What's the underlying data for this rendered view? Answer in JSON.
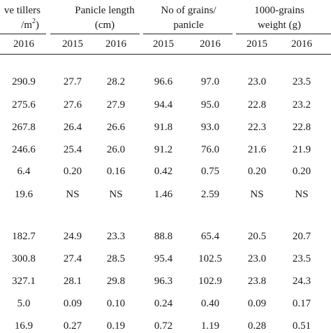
{
  "headers": {
    "tillers_line1": "ve tillers",
    "tillers_line2_pre": "/m",
    "tillers_line2_sup": "2",
    "tillers_line2_post": ")",
    "panicle_line1": "Panicle length",
    "panicle_line2": "(cm)",
    "grains_line1": "No of grains/",
    "grains_line2": "panicle",
    "weight_line1": "1000-grains",
    "weight_line2": "weight (g)"
  },
  "years": [
    "2016",
    "2015",
    "2016",
    "2015",
    "2016",
    "2015",
    "2016"
  ],
  "rows": [
    [
      "290.9",
      "27.7",
      "28.2",
      "96.6",
      "97.0",
      "23.0",
      "23.5"
    ],
    [
      "275.6",
      "27.6",
      "27.9",
      "94.4",
      "95.0",
      "22.8",
      "23.2"
    ],
    [
      "267.8",
      "26.4",
      "26.6",
      "91.8",
      "93.0",
      "22.3",
      "22.8"
    ],
    [
      "246.6",
      "25.4",
      "26.0",
      "91.2",
      "76.0",
      "21.6",
      "21.9"
    ],
    [
      "6.4",
      "0.20",
      "0.16",
      "0.42",
      "0.75",
      "0.20",
      "0.20"
    ],
    [
      "19.6",
      "NS",
      "NS",
      "1.46",
      "2.59",
      "NS",
      "NS"
    ],
    [
      "182.7",
      "24.9",
      "23.3",
      "88.8",
      "65.4",
      "20.5",
      "20.7"
    ],
    [
      "300.8",
      "27.4",
      "28.5",
      "95.4",
      "102.5",
      "23.0",
      "23.5"
    ],
    [
      "327.1",
      "28.1",
      "29.8",
      "96.3",
      "102.9",
      "23.8",
      "24.3"
    ],
    [
      "5.0",
      "0.09",
      "0.10",
      "0.24",
      "0.40",
      "0.09",
      "0.17"
    ],
    [
      "16.9",
      "0.27",
      "0.19",
      "0.72",
      "1.19",
      "0.28",
      "0.51"
    ]
  ]
}
